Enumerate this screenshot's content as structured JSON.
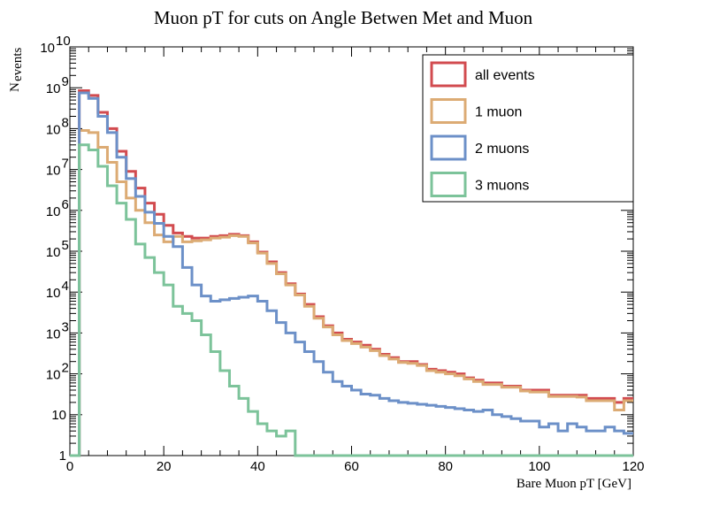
{
  "chart_data": {
    "type": "line",
    "title": "Muon pT for cuts on Angle Betwen Met and Muon",
    "xlabel": "Bare Muon pT [GeV]",
    "ylabel_main": "N",
    "ylabel_sub": "events",
    "xlim": [
      0,
      120
    ],
    "ylim": [
      1,
      10000000000
    ],
    "yscale": "log",
    "bin_width": 2,
    "x_ticks": [
      "0",
      "20",
      "40",
      "60",
      "80",
      "100",
      "120"
    ],
    "y_ticks": [
      {
        "base": "1",
        "exp": ""
      },
      {
        "base": "10",
        "exp": ""
      },
      {
        "base": "10",
        "exp": "2"
      },
      {
        "base": "10",
        "exp": "3"
      },
      {
        "base": "10",
        "exp": "4"
      },
      {
        "base": "10",
        "exp": "5"
      },
      {
        "base": "10",
        "exp": "6"
      },
      {
        "base": "10",
        "exp": "7"
      },
      {
        "base": "10",
        "exp": "8"
      },
      {
        "base": "10",
        "exp": "9"
      },
      {
        "base": "10",
        "exp": "10"
      }
    ],
    "legend_position": "top-right",
    "series": [
      {
        "name": "all events",
        "color": "#d24b4f",
        "values": [
          1,
          850000000,
          650000000,
          250000000,
          100000000,
          28000000,
          9000000,
          3500000,
          1500000,
          800000,
          430000,
          280000,
          230000,
          210000,
          210000,
          230000,
          240000,
          260000,
          240000,
          170000,
          95000,
          55000,
          30000,
          16000,
          9000,
          5000,
          2500,
          1500,
          1000,
          700,
          600,
          500,
          400,
          300,
          250,
          200,
          200,
          170,
          130,
          120,
          110,
          100,
          80,
          70,
          60,
          60,
          50,
          50,
          40,
          40,
          40,
          30,
          30,
          30,
          30,
          25,
          25,
          25,
          20,
          25
        ]
      },
      {
        "name": "1 muon",
        "color": "#dcab74",
        "values": [
          1,
          90000000,
          80000000,
          35000000,
          15000000,
          5000000,
          2000000,
          1000000,
          500000,
          250000,
          170000,
          230000,
          170000,
          180000,
          190000,
          210000,
          220000,
          240000,
          230000,
          160000,
          90000,
          50000,
          28000,
          15000,
          8500,
          4500,
          2300,
          1400,
          900,
          650,
          550,
          450,
          370,
          280,
          230,
          190,
          180,
          160,
          120,
          110,
          100,
          90,
          75,
          65,
          55,
          55,
          47,
          47,
          38,
          36,
          36,
          28,
          28,
          28,
          27,
          22,
          22,
          22,
          13,
          22
        ]
      },
      {
        "name": "2 muons",
        "color": "#6c90c8",
        "values": [
          1,
          750000000,
          550000000,
          200000000,
          80000000,
          20000000,
          6000000,
          2200000,
          900000,
          480000,
          230000,
          130000,
          40000,
          15000,
          8000,
          6000,
          6500,
          7000,
          7500,
          8000,
          6000,
          3500,
          1800,
          1000,
          600,
          350,
          200,
          110,
          65,
          50,
          40,
          32,
          30,
          25,
          22,
          20,
          19,
          18,
          17,
          16,
          15,
          14,
          13,
          12,
          13,
          10,
          9,
          8,
          7,
          7,
          5,
          6,
          4,
          6,
          5,
          4,
          4,
          5,
          4,
          3.5
        ]
      },
      {
        "name": "3 muons",
        "color": "#7cc39a",
        "values": [
          1,
          40000000,
          30000000,
          12000000,
          4000000,
          1500000,
          600000,
          150000,
          70000,
          30000,
          15000,
          4500,
          3000,
          2000,
          900,
          350,
          120,
          50,
          25,
          12,
          6,
          4,
          3,
          4,
          1,
          1,
          1,
          1,
          1,
          1,
          1,
          1,
          1,
          1,
          1,
          1,
          1,
          1,
          1,
          1,
          1,
          1,
          1,
          1,
          1,
          1,
          1,
          1,
          1,
          1,
          1,
          1,
          1,
          1,
          1,
          1,
          1,
          1,
          1,
          1
        ]
      }
    ]
  }
}
